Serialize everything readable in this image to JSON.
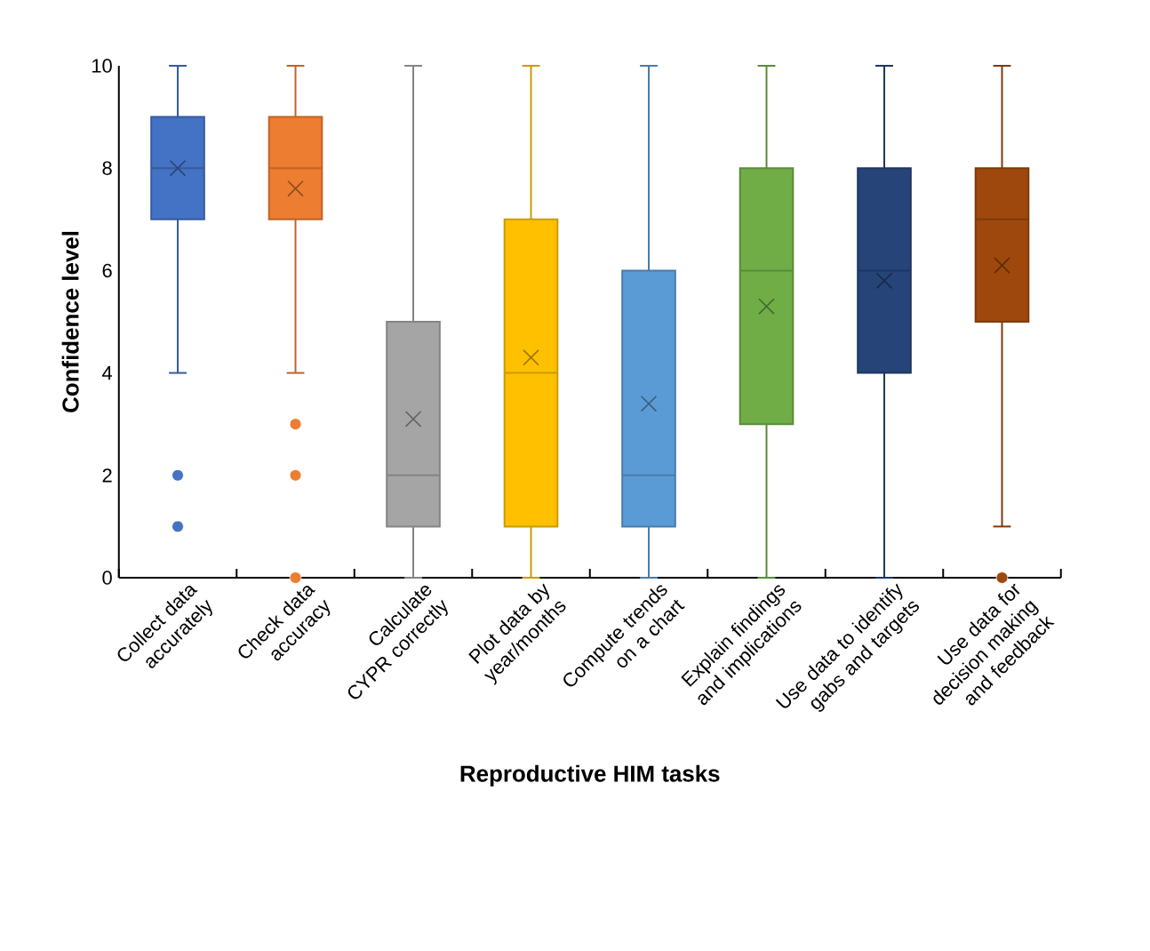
{
  "chart_data": {
    "type": "box",
    "xlabel": "Reproductive HIM tasks",
    "ylabel": "Confidence level",
    "categories": [
      "Collect data accurately",
      "Check data accuracy",
      "Calculate CYPR correctly",
      "Plot data by year/months",
      "Compute trends on a chart",
      "Explain findings and implications",
      "Use data to identify gabs and targets",
      "Use data for decision making and feedback"
    ],
    "colors": [
      "#4472c4",
      "#ed7d31",
      "#a5a5a5",
      "#ffc000",
      "#5b9bd5",
      "#70ad47",
      "#264478",
      "#9e480e"
    ],
    "boxes": [
      {
        "low": 4,
        "q1": 7,
        "median": 8,
        "q3": 9,
        "high": 10,
        "mean": 8.0,
        "outliers": [
          2,
          1
        ]
      },
      {
        "low": 4,
        "q1": 7,
        "median": 8,
        "q3": 9,
        "high": 10,
        "mean": 7.6,
        "outliers": [
          3,
          2,
          0
        ]
      },
      {
        "low": 0,
        "q1": 1,
        "median": 2,
        "q3": 5,
        "high": 10,
        "mean": 3.1
      },
      {
        "low": 0,
        "q1": 1,
        "median": 4,
        "q3": 7,
        "high": 10,
        "mean": 4.3
      },
      {
        "low": 0,
        "q1": 1,
        "median": 2,
        "q3": 6,
        "high": 10,
        "mean": 3.4
      },
      {
        "low": 0,
        "q1": 3,
        "median": 6,
        "q3": 8,
        "high": 10,
        "mean": 5.3
      },
      {
        "low": 0,
        "q1": 4,
        "median": 6,
        "q3": 8,
        "high": 10,
        "mean": 5.8
      },
      {
        "low": 1,
        "q1": 5,
        "median": 7,
        "q3": 8,
        "high": 10,
        "mean": 6.1,
        "outliers": [
          0
        ]
      }
    ],
    "ylim": [
      0,
      10
    ],
    "yticks": [
      0,
      2,
      4,
      6,
      8,
      10
    ],
    "grid": false
  }
}
